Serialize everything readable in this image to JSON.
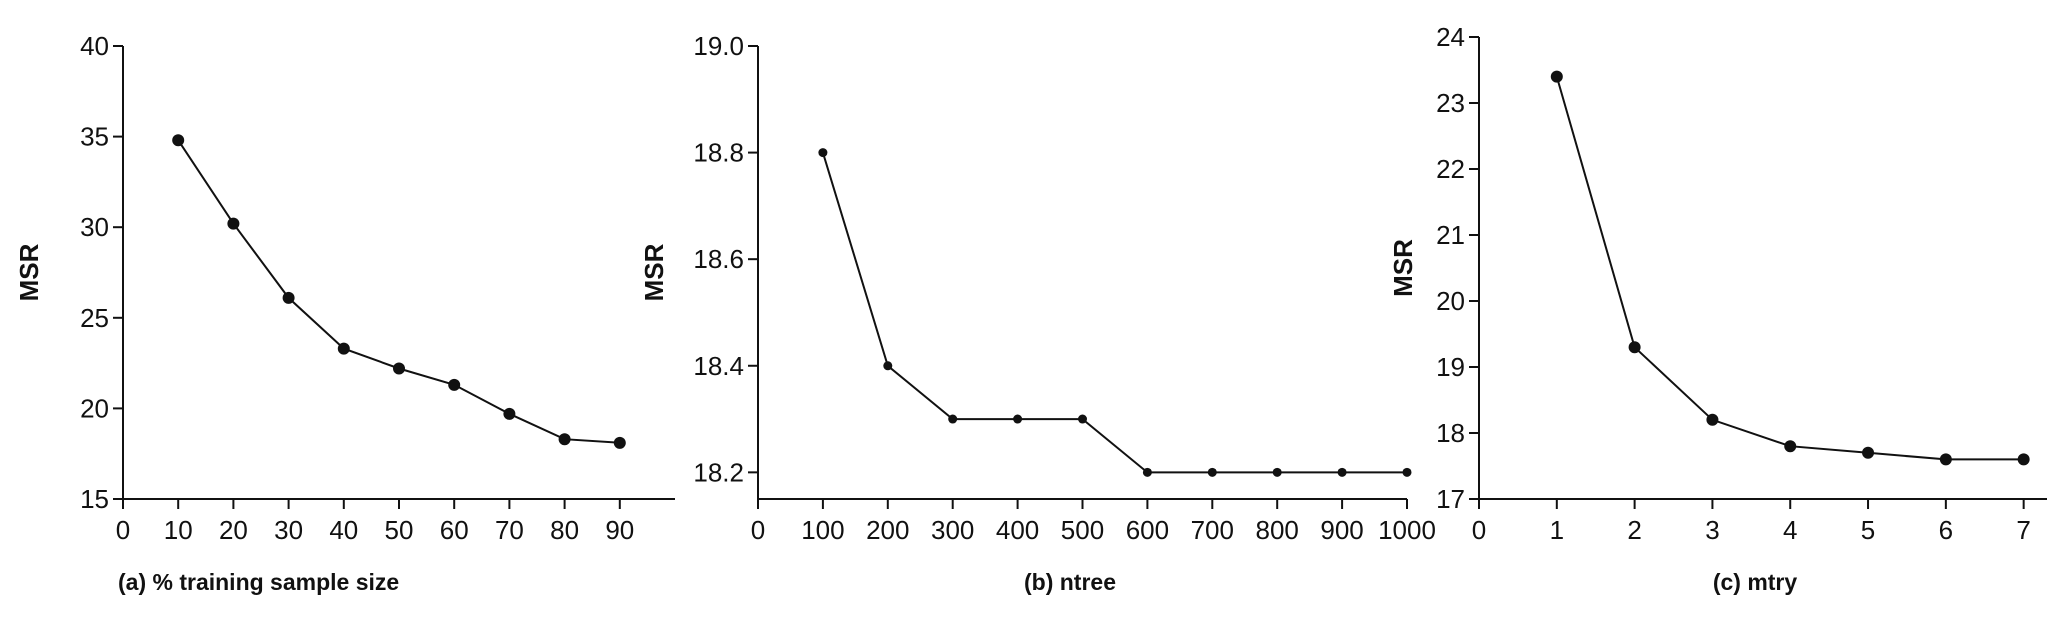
{
  "chart_data": [
    {
      "type": "line",
      "x": [
        10,
        20,
        30,
        40,
        50,
        60,
        70,
        80,
        90
      ],
      "series": [
        {
          "values": [
            34.8,
            30.2,
            26.1,
            23.3,
            22.2,
            21.3,
            19.7,
            18.3,
            18.1
          ]
        }
      ],
      "xlabel": "(a)  % training sample size",
      "ylabel": "MSR",
      "xlim": [
        0,
        100
      ],
      "ylim": [
        15,
        40
      ],
      "xticks": [
        0,
        10,
        20,
        30,
        40,
        50,
        60,
        70,
        80,
        90
      ],
      "yticks": [
        15,
        20,
        25,
        30,
        35,
        40
      ],
      "grid": false
    },
    {
      "type": "line",
      "x": [
        100,
        200,
        300,
        400,
        500,
        600,
        700,
        800,
        900,
        1000
      ],
      "series": [
        {
          "values": [
            18.8,
            18.4,
            18.3,
            18.3,
            18.3,
            18.2,
            18.2,
            18.2,
            18.2,
            18.2
          ]
        }
      ],
      "xlabel": "(b)  ntree",
      "ylabel": "MSR",
      "xlim": [
        0,
        1000
      ],
      "ylim": [
        18.15,
        19.0
      ],
      "xticks": [
        0,
        100,
        200,
        300,
        400,
        500,
        600,
        700,
        800,
        900,
        1000
      ],
      "yticks": [
        18.2,
        18.4,
        18.6,
        18.8,
        19.0
      ],
      "ytick_labels": [
        "18.2",
        "18.4",
        "18.6",
        "18.8",
        "19.0"
      ],
      "grid": false
    },
    {
      "type": "line",
      "x": [
        1,
        2,
        3,
        4,
        5,
        6,
        7
      ],
      "series": [
        {
          "values": [
            23.4,
            19.3,
            18.2,
            17.8,
            17.7,
            17.6,
            17.6
          ]
        }
      ],
      "xlabel": "(c)  mtry",
      "ylabel": "MSR",
      "xlim": [
        0,
        7.3
      ],
      "ylim": [
        17,
        24
      ],
      "xticks": [
        0,
        1,
        2,
        3,
        4,
        5,
        6,
        7
      ],
      "yticks": [
        17,
        18,
        19,
        20,
        21,
        22,
        23,
        24
      ],
      "grid": false
    }
  ]
}
